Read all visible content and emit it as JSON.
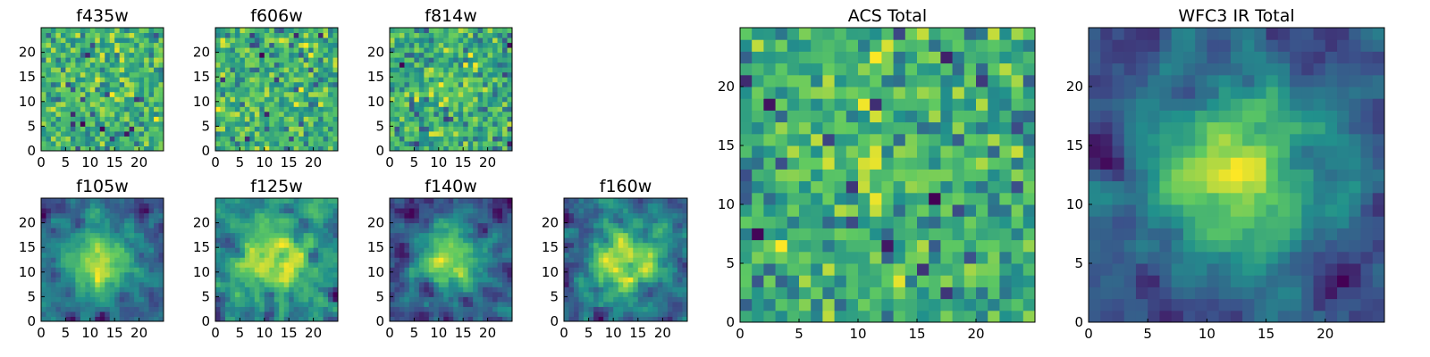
{
  "figure": {
    "colormap": "viridis",
    "colors": [
      "#440154",
      "#3b528b",
      "#21918c",
      "#5ec962",
      "#fde725"
    ],
    "x_ticks": [
      "0",
      "5",
      "10",
      "15",
      "20"
    ],
    "y_ticks": [
      "0",
      "5",
      "10",
      "15",
      "20"
    ]
  },
  "chart_data": [
    {
      "type": "heatmap",
      "title": "f435w",
      "size": 25,
      "xlim": [
        0,
        25
      ],
      "ylim": [
        0,
        25
      ],
      "seed": 11,
      "blob": 0.05,
      "noise": 1.0,
      "smooth": 0
    },
    {
      "type": "heatmap",
      "title": "f606w",
      "size": 25,
      "xlim": [
        0,
        25
      ],
      "ylim": [
        0,
        25
      ],
      "seed": 23,
      "blob": 0.1,
      "noise": 1.0,
      "smooth": 0
    },
    {
      "type": "heatmap",
      "title": "f814w",
      "size": 25,
      "xlim": [
        0,
        25
      ],
      "ylim": [
        0,
        25
      ],
      "seed": 37,
      "blob": 0.2,
      "noise": 1.0,
      "smooth": 0
    },
    {
      "type": "heatmap",
      "title": "f105w",
      "size": 25,
      "xlim": [
        0,
        25
      ],
      "ylim": [
        0,
        25
      ],
      "seed": 41,
      "blob": 0.9,
      "noise": 0.9,
      "smooth": 1
    },
    {
      "type": "heatmap",
      "title": "f125w",
      "size": 25,
      "xlim": [
        0,
        25
      ],
      "ylim": [
        0,
        25
      ],
      "seed": 53,
      "blob": 0.6,
      "noise": 0.9,
      "smooth": 1
    },
    {
      "type": "heatmap",
      "title": "f140w",
      "size": 25,
      "xlim": [
        0,
        25
      ],
      "ylim": [
        0,
        25
      ],
      "seed": 67,
      "blob": 0.9,
      "noise": 0.9,
      "smooth": 1
    },
    {
      "type": "heatmap",
      "title": "f160w",
      "size": 25,
      "xlim": [
        0,
        25
      ],
      "ylim": [
        0,
        25
      ],
      "seed": 79,
      "blob": 0.8,
      "noise": 0.9,
      "smooth": 1
    },
    {
      "type": "heatmap",
      "title": "ACS Total",
      "size": 25,
      "xlim": [
        0,
        25
      ],
      "ylim": [
        0,
        25
      ],
      "seed": 83,
      "blob": 0.25,
      "noise": 1.0,
      "smooth": 0
    },
    {
      "type": "heatmap",
      "title": "WFC3 IR Total",
      "size": 25,
      "xlim": [
        0,
        25
      ],
      "ylim": [
        0,
        25
      ],
      "seed": 97,
      "blob": 1.2,
      "noise": 0.75,
      "smooth": 1
    }
  ]
}
